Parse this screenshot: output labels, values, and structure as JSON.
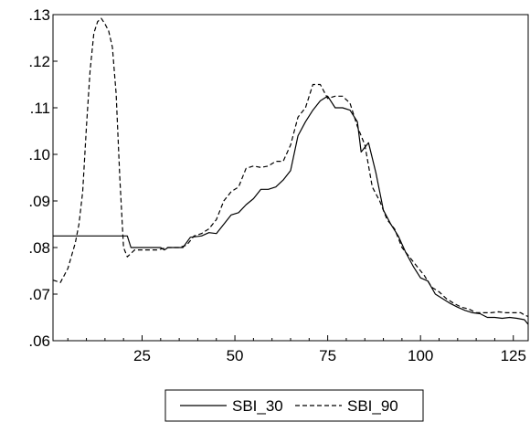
{
  "chart_data": {
    "type": "line",
    "title": "",
    "xlabel": "",
    "ylabel": "",
    "xlim": [
      1,
      129
    ],
    "ylim": [
      0.06,
      0.13
    ],
    "x_ticks": [
      25,
      50,
      75,
      100,
      125
    ],
    "x_tick_labels": [
      "25",
      "50",
      "75",
      "100",
      "125"
    ],
    "y_ticks": [
      0.06,
      0.07,
      0.08,
      0.09,
      0.1,
      0.11,
      0.12,
      0.13
    ],
    "y_tick_labels": [
      ".06",
      ".07",
      ".08",
      ".09",
      ".10",
      ".11",
      ".12",
      ".13"
    ],
    "grid": false,
    "legend_position": "bottom-center",
    "series": [
      {
        "name": "SBI_30",
        "style": "solid",
        "color": "#000000",
        "points": [
          [
            1,
            0.0825
          ],
          [
            10,
            0.0825
          ],
          [
            21,
            0.0825
          ],
          [
            22,
            0.08
          ],
          [
            25,
            0.08
          ],
          [
            30,
            0.08
          ],
          [
            31,
            0.0795
          ],
          [
            32,
            0.08
          ],
          [
            36,
            0.08
          ],
          [
            38,
            0.0822
          ],
          [
            41,
            0.0825
          ],
          [
            43,
            0.0832
          ],
          [
            45,
            0.083
          ],
          [
            47,
            0.085
          ],
          [
            49,
            0.087
          ],
          [
            51,
            0.0875
          ],
          [
            53,
            0.0892
          ],
          [
            55,
            0.0905
          ],
          [
            57,
            0.0925
          ],
          [
            59,
            0.0925
          ],
          [
            61,
            0.093
          ],
          [
            63,
            0.0945
          ],
          [
            65,
            0.0965
          ],
          [
            67,
            0.104
          ],
          [
            69,
            0.107
          ],
          [
            71,
            0.1095
          ],
          [
            73,
            0.1115
          ],
          [
            75,
            0.1125
          ],
          [
            77,
            0.11
          ],
          [
            79,
            0.11
          ],
          [
            81,
            0.1095
          ],
          [
            83,
            0.107
          ],
          [
            84,
            0.1005
          ],
          [
            86,
            0.1025
          ],
          [
            88,
            0.096
          ],
          [
            90,
            0.088
          ],
          [
            92,
            0.085
          ],
          [
            94,
            0.0825
          ],
          [
            96,
            0.079
          ],
          [
            98,
            0.076
          ],
          [
            100,
            0.0735
          ],
          [
            102,
            0.0728
          ],
          [
            104,
            0.07
          ],
          [
            106,
            0.069
          ],
          [
            108,
            0.068
          ],
          [
            110,
            0.0672
          ],
          [
            112,
            0.0665
          ],
          [
            114,
            0.066
          ],
          [
            116,
            0.0658
          ],
          [
            118,
            0.065
          ],
          [
            120,
            0.065
          ],
          [
            122,
            0.0648
          ],
          [
            124,
            0.065
          ],
          [
            126,
            0.0648
          ],
          [
            128,
            0.0645
          ],
          [
            129,
            0.0635
          ]
        ]
      },
      {
        "name": "SBI_90",
        "style": "dashed",
        "color": "#000000",
        "points": [
          [
            1,
            0.073
          ],
          [
            3,
            0.0725
          ],
          [
            5,
            0.0755
          ],
          [
            7,
            0.081
          ],
          [
            8,
            0.085
          ],
          [
            9,
            0.092
          ],
          [
            10,
            0.106
          ],
          [
            11,
            0.118
          ],
          [
            12,
            0.126
          ],
          [
            13,
            0.1285
          ],
          [
            14,
            0.1292
          ],
          [
            15,
            0.128
          ],
          [
            16,
            0.1265
          ],
          [
            17,
            0.123
          ],
          [
            18,
            0.113
          ],
          [
            19,
            0.095
          ],
          [
            20,
            0.08
          ],
          [
            21,
            0.078
          ],
          [
            23,
            0.0795
          ],
          [
            26,
            0.0795
          ],
          [
            29,
            0.0795
          ],
          [
            32,
            0.08
          ],
          [
            35,
            0.08
          ],
          [
            37,
            0.0805
          ],
          [
            39,
            0.0825
          ],
          [
            41,
            0.083
          ],
          [
            43,
            0.084
          ],
          [
            45,
            0.086
          ],
          [
            47,
            0.09
          ],
          [
            49,
            0.092
          ],
          [
            51,
            0.093
          ],
          [
            53,
            0.097
          ],
          [
            55,
            0.0975
          ],
          [
            57,
            0.0972
          ],
          [
            59,
            0.0975
          ],
          [
            61,
            0.0985
          ],
          [
            63,
            0.0985
          ],
          [
            65,
            0.102
          ],
          [
            67,
            0.108
          ],
          [
            69,
            0.11
          ],
          [
            71,
            0.115
          ],
          [
            73,
            0.115
          ],
          [
            75,
            0.112
          ],
          [
            77,
            0.1125
          ],
          [
            79,
            0.1125
          ],
          [
            81,
            0.111
          ],
          [
            83,
            0.106
          ],
          [
            85,
            0.102
          ],
          [
            87,
            0.093
          ],
          [
            89,
            0.09
          ],
          [
            91,
            0.086
          ],
          [
            93,
            0.084
          ],
          [
            95,
            0.08
          ],
          [
            97,
            0.078
          ],
          [
            99,
            0.076
          ],
          [
            101,
            0.074
          ],
          [
            103,
            0.0715
          ],
          [
            105,
            0.0705
          ],
          [
            107,
            0.069
          ],
          [
            109,
            0.068
          ],
          [
            111,
            0.0672
          ],
          [
            113,
            0.0668
          ],
          [
            115,
            0.066
          ],
          [
            117,
            0.066
          ],
          [
            119,
            0.066
          ],
          [
            121,
            0.0662
          ],
          [
            123,
            0.066
          ],
          [
            125,
            0.066
          ],
          [
            127,
            0.066
          ],
          [
            128,
            0.0655
          ],
          [
            129,
            0.0652
          ]
        ]
      }
    ]
  }
}
